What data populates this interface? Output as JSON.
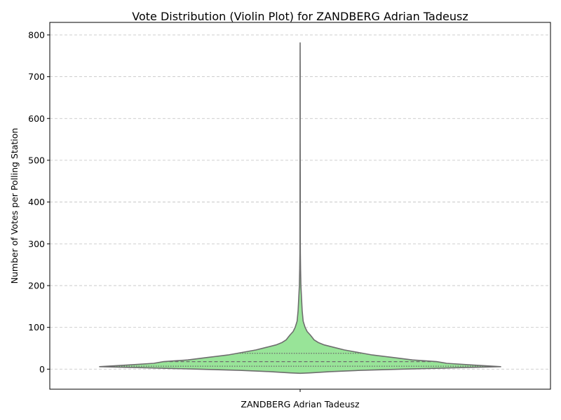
{
  "chart_data": {
    "type": "violin",
    "title": "Vote Distribution (Violin Plot) for ZANDBERG Adrian Tadeusz",
    "xlabel": "",
    "ylabel": "Number of Votes per Polling Station",
    "categories": [
      "ZANDBERG Adrian Tadeusz"
    ],
    "ylim": [
      -48,
      830
    ],
    "yticks": [
      0,
      100,
      200,
      300,
      400,
      500,
      600,
      700,
      800
    ],
    "grid": "y-dashed",
    "fill_color": "#98e498",
    "edge_color": "#6e6e6e",
    "quartiles": {
      "q1": 7,
      "median": 18,
      "q3": 38
    },
    "density_profile": [
      {
        "y": -10,
        "w": 0.0
      },
      {
        "y": -9,
        "w": 0.05
      },
      {
        "y": -6,
        "w": 0.15
      },
      {
        "y": -3,
        "w": 0.3
      },
      {
        "y": 0,
        "w": 0.5
      },
      {
        "y": 3,
        "w": 0.75
      },
      {
        "y": 6,
        "w": 1.0
      },
      {
        "y": 10,
        "w": 0.86
      },
      {
        "y": 14,
        "w": 0.73
      },
      {
        "y": 18,
        "w": 0.68
      },
      {
        "y": 22,
        "w": 0.56
      },
      {
        "y": 28,
        "w": 0.46
      },
      {
        "y": 34,
        "w": 0.36
      },
      {
        "y": 40,
        "w": 0.29
      },
      {
        "y": 46,
        "w": 0.22
      },
      {
        "y": 52,
        "w": 0.17
      },
      {
        "y": 58,
        "w": 0.12
      },
      {
        "y": 64,
        "w": 0.09
      },
      {
        "y": 70,
        "w": 0.07
      },
      {
        "y": 76,
        "w": 0.06
      },
      {
        "y": 82,
        "w": 0.05
      },
      {
        "y": 90,
        "w": 0.035
      },
      {
        "y": 100,
        "w": 0.025
      },
      {
        "y": 115,
        "w": 0.015
      },
      {
        "y": 140,
        "w": 0.01
      },
      {
        "y": 170,
        "w": 0.007
      },
      {
        "y": 200,
        "w": 0.004
      },
      {
        "y": 240,
        "w": 0.002
      },
      {
        "y": 280,
        "w": 0.0012
      },
      {
        "y": 350,
        "w": 0.0008
      },
      {
        "y": 450,
        "w": 0.0006
      },
      {
        "y": 550,
        "w": 0.0005
      },
      {
        "y": 650,
        "w": 0.0004
      },
      {
        "y": 720,
        "w": 0.0003
      },
      {
        "y": 781,
        "w": 0.0
      }
    ]
  }
}
